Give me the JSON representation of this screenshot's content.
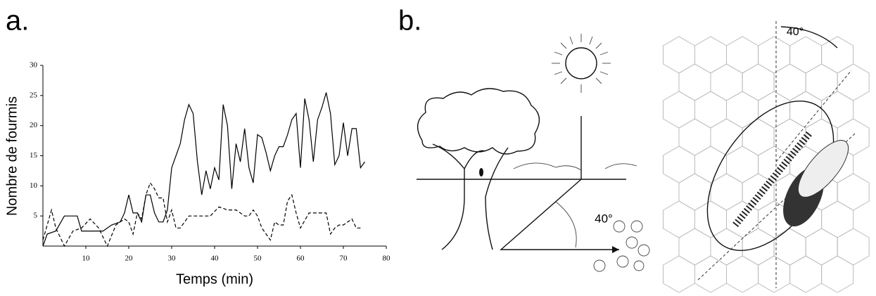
{
  "panels": [
    "a.",
    "b."
  ],
  "chart_data": {
    "type": "line",
    "x_label": "Temps (min)",
    "y_label": "Nombre de fourmis",
    "xlim": [
      0,
      80
    ],
    "xticks": [
      10,
      20,
      30,
      40,
      50,
      60,
      70,
      80
    ],
    "ylim": [
      0,
      30
    ],
    "yticks": [
      5,
      10,
      15,
      20,
      25,
      30
    ],
    "series": [
      {
        "color": "#000000",
        "dashed": false,
        "x": [
          0,
          1,
          3,
          5,
          8,
          9,
          12,
          14,
          16,
          18,
          19,
          20,
          21,
          22,
          23,
          24,
          25,
          26,
          27,
          28,
          29,
          30,
          31,
          32,
          33,
          34,
          35,
          36,
          37,
          38,
          39,
          40,
          41,
          42,
          43,
          44,
          45,
          46,
          47,
          48,
          49,
          50,
          51,
          52,
          53,
          54,
          55,
          56,
          57,
          58,
          59,
          60,
          61,
          62,
          63,
          64,
          65,
          66,
          67,
          68,
          69,
          70,
          71,
          72,
          73,
          74,
          75
        ],
        "values": [
          0,
          2,
          2.5,
          5,
          5,
          2.5,
          2.5,
          2.5,
          3.5,
          4,
          5.5,
          8.5,
          5.5,
          5.5,
          4,
          8.5,
          8.5,
          5.5,
          4,
          4,
          6,
          13,
          15,
          17,
          21,
          23.5,
          22,
          14,
          8.5,
          12.5,
          9.5,
          13,
          11,
          23.5,
          20,
          9.5,
          17,
          14,
          19.5,
          13,
          10.5,
          18.5,
          18,
          15.5,
          12.5,
          15,
          16.5,
          16.5,
          18.5,
          21,
          22,
          13,
          24.5,
          21,
          14,
          21,
          23,
          25.5,
          22,
          13.5,
          15,
          20.5,
          15,
          19.5,
          19.5,
          13,
          14
        ]
      },
      {
        "color": "#000000",
        "dashed": true,
        "x": [
          0,
          2,
          3,
          5,
          7,
          9,
          11,
          13,
          15,
          17,
          19,
          20,
          21,
          22,
          23,
          24,
          25,
          26,
          27,
          28,
          29,
          30,
          31,
          32,
          34,
          37,
          39,
          41,
          43,
          45,
          47,
          48,
          49,
          50,
          51,
          52,
          53,
          54,
          55,
          56,
          57,
          58,
          59,
          60,
          62,
          64,
          66,
          67,
          68,
          69,
          70,
          71,
          72,
          73,
          74
        ],
        "values": [
          1,
          6,
          3,
          0,
          2.5,
          3,
          4.5,
          3,
          0,
          3.5,
          4.5,
          4,
          2,
          5.5,
          4.5,
          8.5,
          10.5,
          9.5,
          8,
          8,
          4,
          6,
          3,
          3,
          5,
          5,
          5,
          6.5,
          6,
          6,
          5,
          5,
          6,
          5,
          3,
          2,
          1,
          4,
          3.5,
          3.5,
          7.5,
          8.5,
          5.5,
          3,
          5.5,
          5.5,
          5.5,
          2,
          3,
          3.5,
          3.5,
          4,
          4.5,
          3,
          3
        ]
      }
    ]
  },
  "diagram": {
    "angle_labels": [
      "40°",
      "40°"
    ]
  }
}
